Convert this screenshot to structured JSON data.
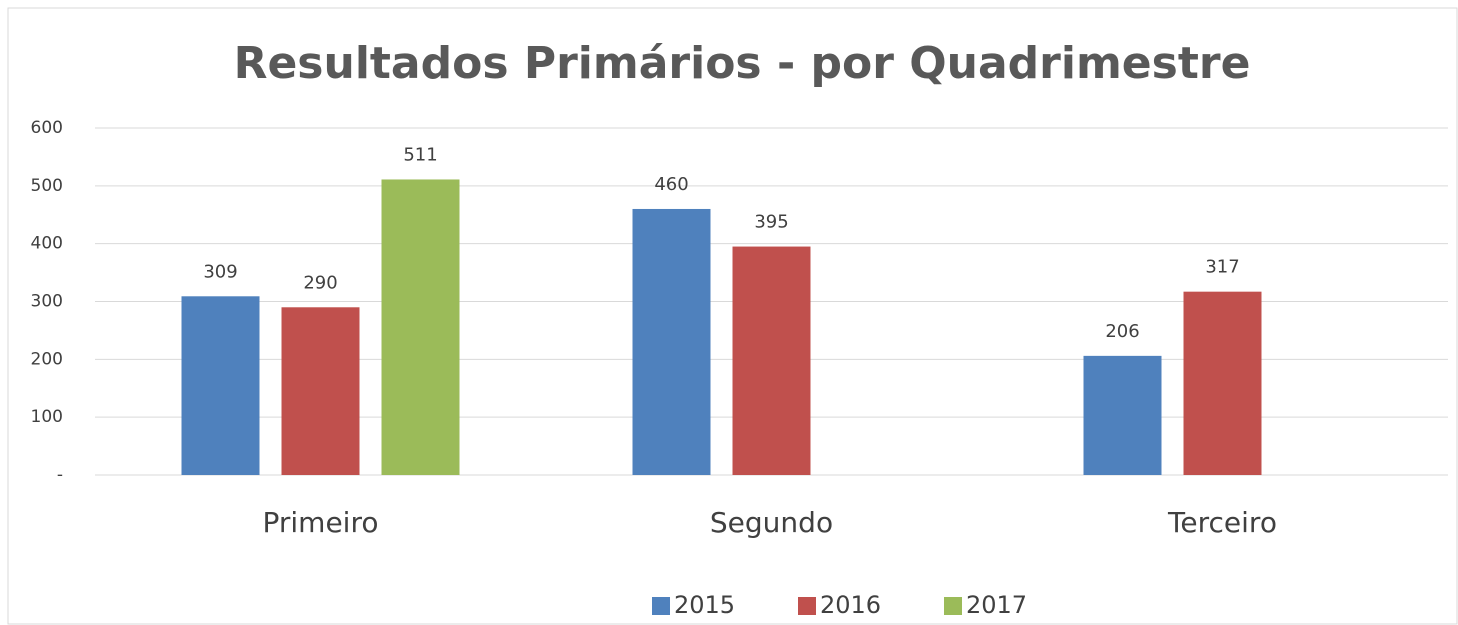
{
  "chart_data": {
    "type": "bar",
    "title": "Resultados Primários - por Quadrimestre",
    "categories": [
      "Primeiro",
      "Segundo",
      "Terceiro"
    ],
    "series": [
      {
        "name": "2015",
        "color": "#4f81bd",
        "values": [
          309,
          460,
          206
        ]
      },
      {
        "name": "2016",
        "color": "#c0504d",
        "values": [
          290,
          395,
          317
        ]
      },
      {
        "name": "2017",
        "color": "#9bbb59",
        "values": [
          511,
          null,
          null
        ]
      }
    ],
    "ylim": [
      0,
      600
    ],
    "yticks": [
      {
        "value": 0,
        "label": "-"
      },
      100,
      200,
      300,
      400,
      500,
      600
    ],
    "grid": true,
    "legend": "bottom"
  }
}
